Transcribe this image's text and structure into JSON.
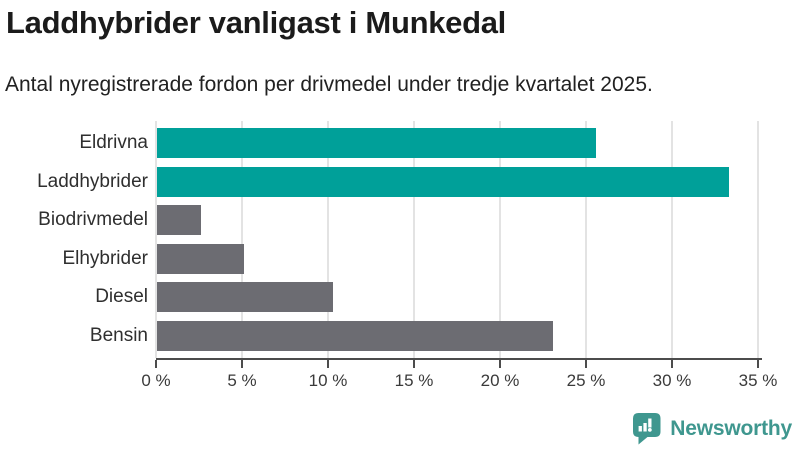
{
  "header": {
    "title": "Laddhybrider vanligast i Munkedal",
    "subtitle": "Antal nyregistrerade fordon per drivmedel under tredje kvartalet 2025."
  },
  "chart_data": {
    "type": "bar",
    "orientation": "horizontal",
    "title": "Laddhybrider vanligast i Munkedal",
    "subtitle": "Antal nyregistrerade fordon per drivmedel under tredje kvartalet 2025.",
    "categories": [
      "Eldrivna",
      "Laddhybrider",
      "Biodrivmedel",
      "Elhybrider",
      "Diesel",
      "Bensin"
    ],
    "values": [
      25.6,
      33.3,
      2.6,
      5.1,
      10.3,
      23.1
    ],
    "bar_colors": [
      "#00a099",
      "#00a099",
      "#6c6c72",
      "#6c6c72",
      "#6c6c72",
      "#6c6c72"
    ],
    "xlabel": "",
    "ylabel": "",
    "xlim": [
      0,
      35
    ],
    "xticks": [
      0,
      5,
      10,
      15,
      20,
      25,
      30,
      35
    ],
    "tick_suffix": " %",
    "grid": true,
    "legend": null
  },
  "colors": {
    "accent_teal": "#00a099",
    "neutral_gray": "#6c6c72",
    "gridline": "#e3e3e3",
    "axis": "#4c4c4c",
    "brand_teal": "#3f978f"
  },
  "branding": {
    "name": "Newsworthy",
    "icon": "newsworthy-bar-chart-bubble-icon"
  }
}
